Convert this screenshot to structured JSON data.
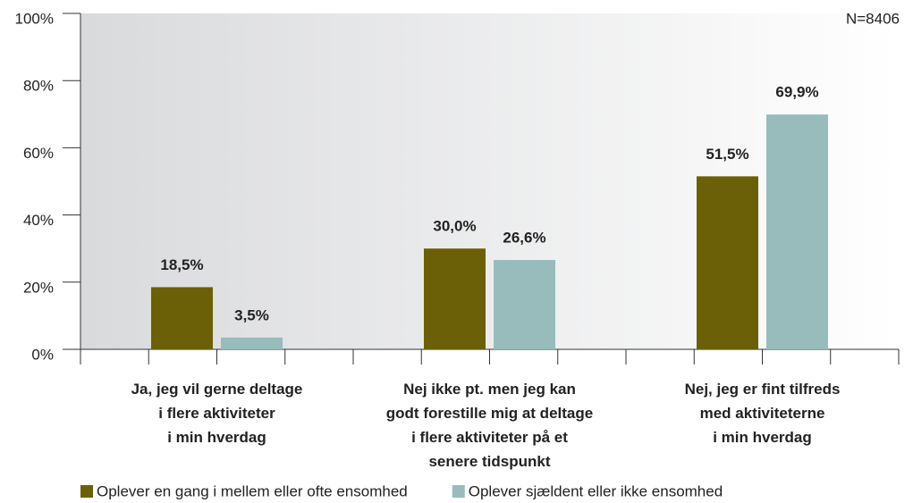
{
  "chart_data": {
    "type": "bar",
    "annotation": "N=8406",
    "categories": [
      "Ja, jeg vil gerne deltage\ni flere aktiviteter\ni min hverdag",
      "Nej ikke pt. men jeg kan\ngodt forestille mig at deltage\ni flere aktiviteter på et\nsenere tidspunkt",
      "Nej, jeg er fint tilfreds\nmed aktiviteterne\ni min hverdag"
    ],
    "series": [
      {
        "name": "Oplever en gang i mellem eller ofte ensomhed",
        "color": "#6b5f07",
        "values": [
          18.5,
          30.0,
          51.5
        ],
        "value_labels": [
          "18,5%",
          "30,0%",
          "51,5%"
        ]
      },
      {
        "name": "Oplever sjældent eller ikke ensomhed",
        "color": "#97bcbb",
        "values": [
          3.5,
          26.6,
          69.9
        ],
        "value_labels": [
          "3,5%",
          "26,6%",
          "69,9%"
        ]
      }
    ],
    "ylim": [
      0,
      100
    ],
    "yticks": [
      {
        "value": 0,
        "label": "0%"
      },
      {
        "value": 20,
        "label": "20%"
      },
      {
        "value": 40,
        "label": "40%"
      },
      {
        "value": 60,
        "label": "60%"
      },
      {
        "value": 80,
        "label": "80%"
      },
      {
        "value": 100,
        "label": "100%"
      }
    ],
    "legend": "bottom"
  }
}
